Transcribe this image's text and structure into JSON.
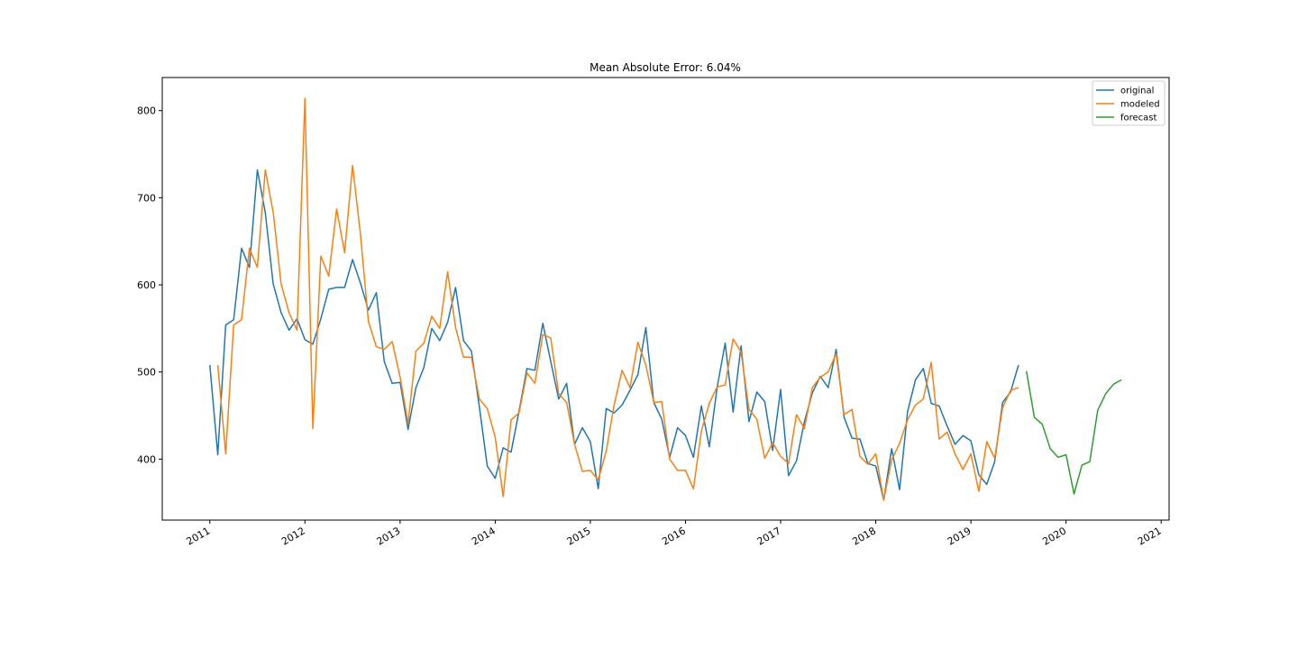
{
  "chart_data": {
    "type": "line",
    "title": "Mean Absolute Error: 6.04%",
    "xlabel": "",
    "ylabel": "",
    "x_ticks": [
      "2011",
      "2012",
      "2013",
      "2014",
      "2015",
      "2016",
      "2017",
      "2018",
      "2019",
      "2020",
      "2021"
    ],
    "y_ticks": [
      400,
      500,
      600,
      700,
      800
    ],
    "xlim": [
      "2010-07",
      "2021-02"
    ],
    "ylim": [
      330,
      838
    ],
    "grid": false,
    "legend_position": "top-right",
    "colors": {
      "original": "#1f77b4",
      "modeled": "#ff7f0e",
      "forecast": "#2ca02c"
    },
    "series": [
      {
        "name": "original",
        "start": "2011-01",
        "values": [
          508,
          405,
          554,
          560,
          642,
          620,
          732,
          683,
          601,
          568,
          548,
          561,
          537,
          532,
          561,
          595,
          597,
          597,
          629,
          602,
          571,
          591,
          512,
          487,
          488,
          434,
          482,
          505,
          550,
          536,
          557,
          597,
          536,
          524,
          460,
          392,
          378,
          413,
          408,
          455,
          504,
          502,
          556,
          512,
          469,
          487,
          417,
          436,
          420,
          366,
          458,
          453,
          462,
          479,
          497,
          551,
          465,
          446,
          402,
          436,
          427,
          402,
          461,
          414,
          483,
          533,
          454,
          530,
          443,
          477,
          466,
          410,
          480,
          381,
          398,
          443,
          476,
          495,
          482,
          526,
          448,
          424,
          423,
          395,
          392,
          353,
          412,
          365,
          454,
          491,
          504,
          464,
          461,
          438,
          417,
          427,
          421,
          382,
          371,
          397,
          465,
          477,
          508
        ]
      },
      {
        "name": "modeled",
        "start": "2011-02",
        "values": [
          508,
          406,
          554,
          560,
          642,
          620,
          732,
          683,
          601,
          568,
          548,
          814,
          435,
          633,
          610,
          687,
          637,
          737,
          658,
          558,
          529,
          526,
          535,
          494,
          441,
          524,
          533,
          564,
          550,
          615,
          551,
          517,
          517,
          469,
          458,
          425,
          357,
          445,
          453,
          499,
          487,
          543,
          539,
          475,
          465,
          417,
          386,
          387,
          376,
          409,
          462,
          502,
          482,
          534,
          508,
          465,
          466,
          400,
          387,
          387,
          366,
          432,
          464,
          483,
          485,
          538,
          523,
          457,
          446,
          401,
          419,
          403,
          395,
          451,
          435,
          482,
          494,
          500,
          521,
          451,
          457,
          403,
          394,
          406,
          353,
          399,
          418,
          445,
          462,
          469,
          511,
          423,
          431,
          406,
          388,
          406,
          363,
          420,
          401,
          459,
          479,
          482
        ]
      },
      {
        "name": "forecast",
        "start": "2019-08",
        "values": [
          501,
          448,
          440,
          412,
          402,
          405,
          360,
          393,
          397,
          456,
          475,
          486,
          491
        ]
      }
    ]
  }
}
